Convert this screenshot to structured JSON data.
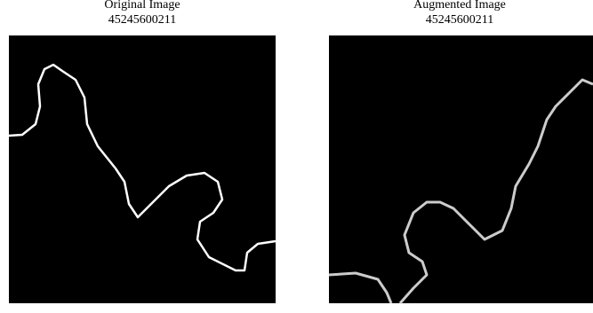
{
  "panels": [
    {
      "title": "Original Image",
      "subtitle": "45245600211"
    },
    {
      "title": "Augmented Image",
      "subtitle": "45245600211"
    }
  ]
}
